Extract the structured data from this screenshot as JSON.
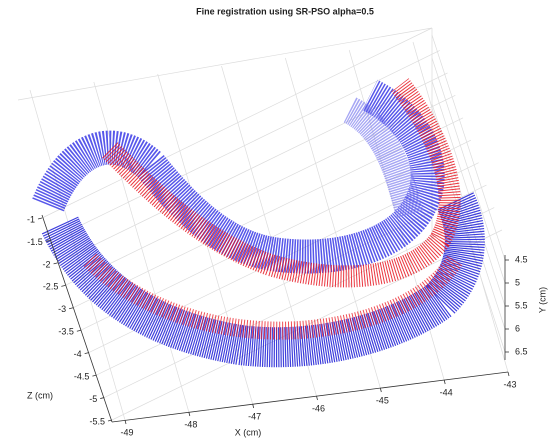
{
  "chart_data": {
    "type": "scatter3d",
    "title": "Fine registration using SR-PSO alpha=0.5",
    "xlabel": "X (cm)",
    "ylabel": "Y (cm)",
    "zlabel": "Z (cm)",
    "xlim": [
      -49,
      -43
    ],
    "xticks": [
      -49,
      -48,
      -47,
      -46,
      -45,
      -44,
      -43
    ],
    "ylim": [
      4.5,
      6.5
    ],
    "yticks": [
      4.5,
      5,
      5.5,
      6,
      6.5
    ],
    "zlim": [
      -1,
      -5.5
    ],
    "zticks": [
      -1,
      -1.5,
      -2,
      -2.5,
      -3,
      -3.5,
      -4,
      -4.5,
      -5,
      -5.5
    ],
    "grid": true
  }
}
